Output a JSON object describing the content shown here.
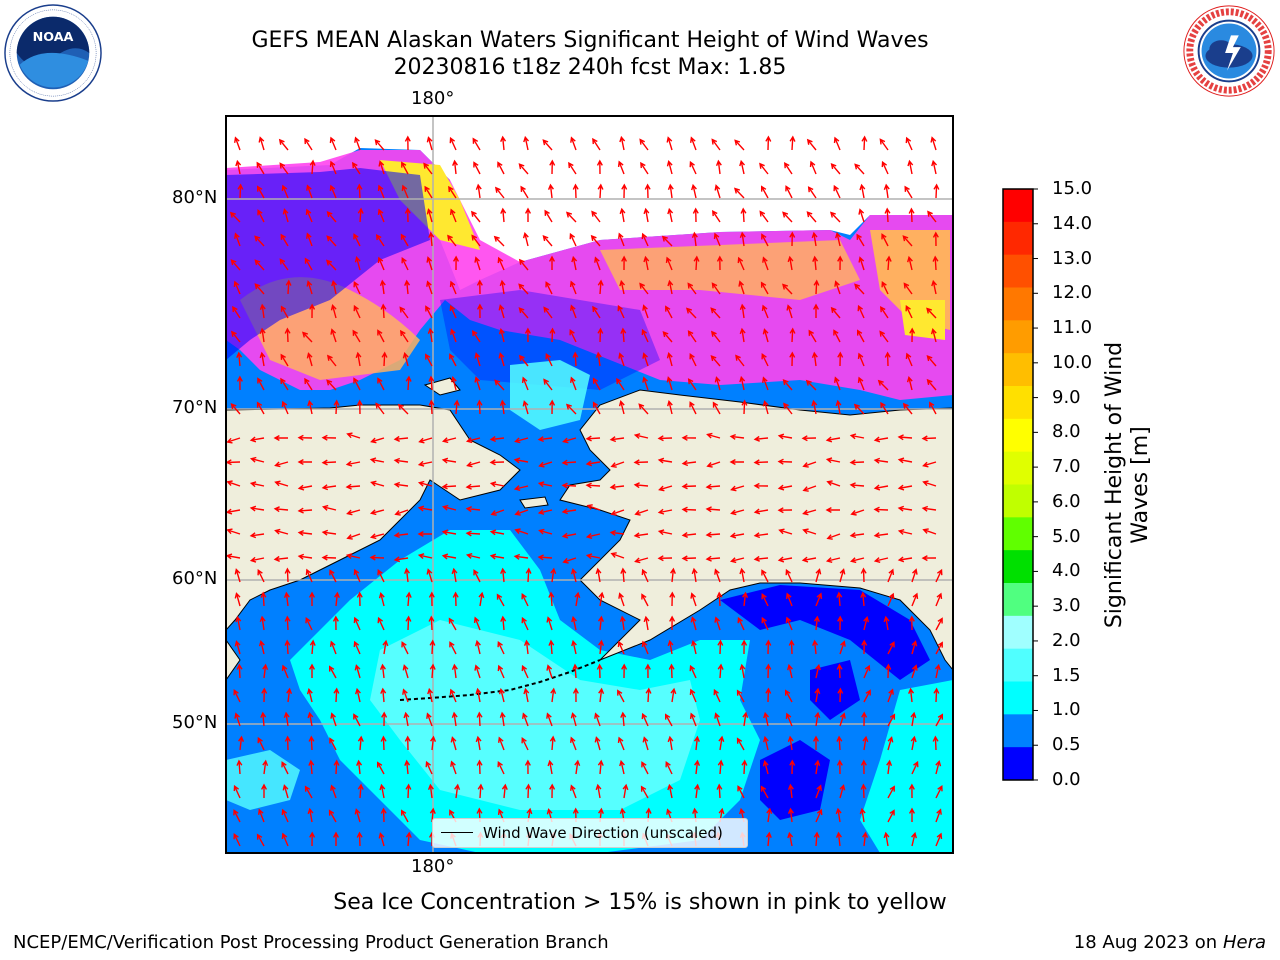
{
  "title_line1": "GEFS MEAN Alaskan Waters Significant Height of Wind Waves",
  "title_line2": "20230816 t18z 240h fcst   Max: 1.85",
  "logos": {
    "left": {
      "name": "noaa-logo",
      "text": "NOAA",
      "ring_text": "NATIONAL OCEANIC AND ATMOSPHERIC ADMINISTRATION · U.S. DEPARTMENT OF COMMERCE"
    },
    "right": {
      "name": "nws-logo",
      "ring_text": "NATIONAL WEATHER SERVICE"
    }
  },
  "map": {
    "lon_label_top": "180°",
    "lon_label_bottom": "180°",
    "lat_labels": [
      "80°N",
      "70°N",
      "60°N",
      "50°N"
    ],
    "legend": "Wind Wave Direction (unscaled)",
    "colors": {
      "land": "#efeedc",
      "ocean_low": "#0080ff",
      "ocean_very_low": "#0000ff",
      "ocean_mid": "#00ffff",
      "ocean_mid2": "#56ffff",
      "ice_pink": "#ff44ee",
      "ice_orange": "#ffb060",
      "ice_yellow": "#ffe830",
      "arrow": "#ff0000",
      "grid": "#b0b0b0"
    }
  },
  "colorbar": {
    "label_line1": "Significant Height of Wind",
    "label_line2": "Waves [m]",
    "ticks": [
      "15.0",
      "14.0",
      "13.0",
      "12.0",
      "11.0",
      "10.0",
      "9.0",
      "8.0",
      "7.0",
      "6.0",
      "5.0",
      "4.0",
      "3.0",
      "2.0",
      "1.5",
      "1.0",
      "0.5",
      "0.0"
    ],
    "colors": [
      "#ff0000",
      "#ff2800",
      "#ff5000",
      "#ff7800",
      "#ff9c00",
      "#ffbe00",
      "#ffe000",
      "#ffff00",
      "#e0ff00",
      "#c0ff00",
      "#60ff00",
      "#00e000",
      "#50ff80",
      "#a0ffff",
      "#50ffff",
      "#00ffff",
      "#0080ff",
      "#0000ff"
    ]
  },
  "caption": "Sea Ice Concentration > 15% is shown in pink to yellow",
  "footer_left": "NCEP/EMC/Verification Post Processing Product Generation Branch",
  "footer_date": "18 Aug 2023 on",
  "footer_host": "Hera"
}
